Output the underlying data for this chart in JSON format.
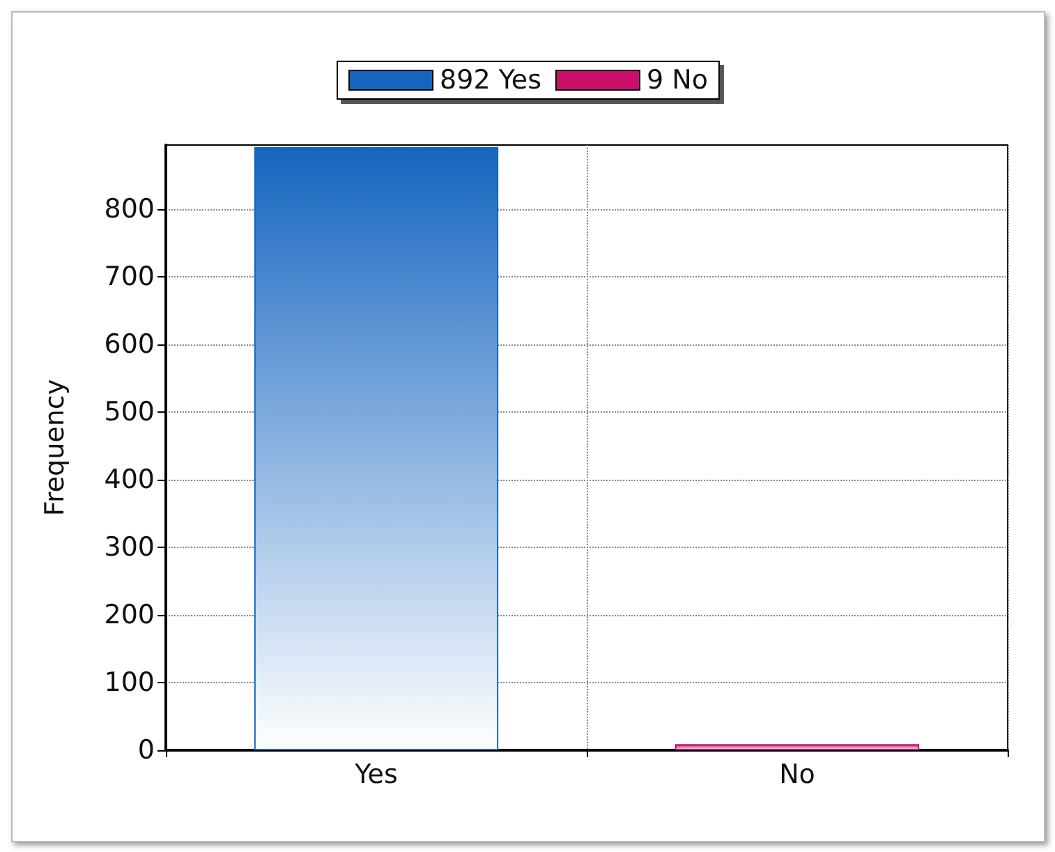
{
  "chart_data": {
    "type": "bar",
    "ylabel": "Frequency",
    "categories": [
      "Yes",
      "No"
    ],
    "series": [
      {
        "name": "892 Yes",
        "color": "#1565c0",
        "values": [
          892,
          null
        ]
      },
      {
        "name": "9 No",
        "color": "#c8106a",
        "values": [
          null,
          9
        ]
      }
    ],
    "ylim": [
      0,
      895
    ],
    "yticks": [
      0,
      100,
      200,
      300,
      400,
      500,
      600,
      700,
      800
    ],
    "grid": true,
    "legend": "top"
  }
}
